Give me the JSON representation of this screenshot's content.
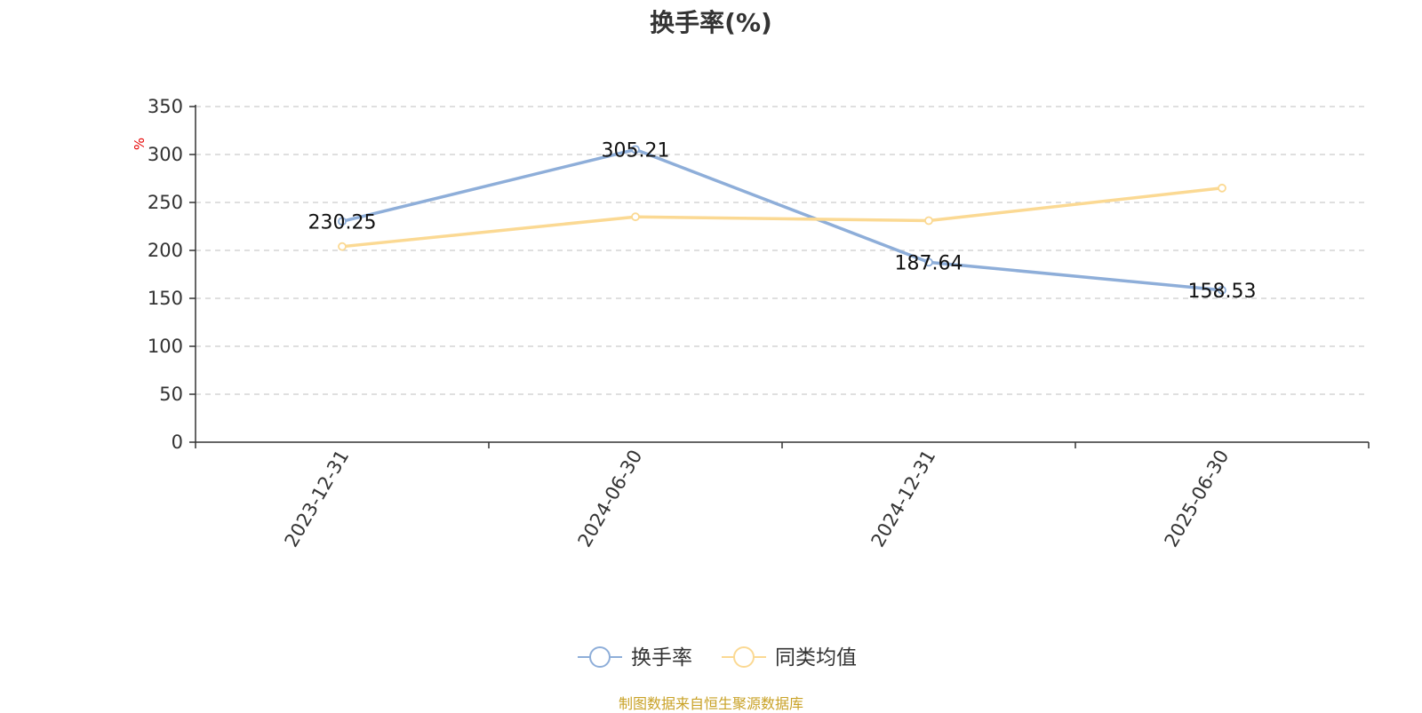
{
  "chart_data": {
    "type": "line",
    "title": "换手率(%)",
    "ylabel": "%",
    "categories": [
      "2023-12-31",
      "2024-06-30",
      "2024-12-31",
      "2025-06-30"
    ],
    "ylim": [
      0,
      350
    ],
    "yticks": [
      0,
      50,
      100,
      150,
      200,
      250,
      300,
      350
    ],
    "grid": "horizontal-dashed",
    "legend_position": "bottom-center",
    "series": [
      {
        "name": "换手率",
        "values": [
          230.25,
          305.21,
          187.64,
          158.53
        ],
        "data_labels": [
          "230.25",
          "305.21",
          "187.64",
          "158.53"
        ],
        "color": "#8eaed9"
      },
      {
        "name": "同类均值",
        "values": [
          204,
          235,
          231,
          265
        ],
        "color": "#fbd993"
      }
    ]
  },
  "source_note": "制图数据来自恒生聚源数据库",
  "colors": {
    "axis": "#333333",
    "grid": "#cccccc",
    "ylabel": "#e60000",
    "source": "#c9a227"
  }
}
